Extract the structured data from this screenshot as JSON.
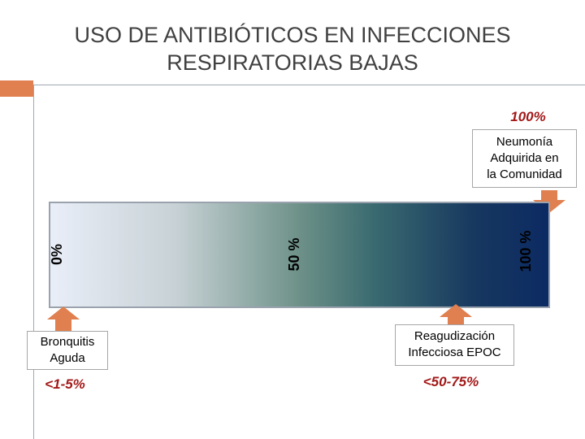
{
  "title": {
    "line1": "USO DE ANTIBIÓTICOS EN INFECCIONES",
    "line2": "RESPIRATORIAS BAJAS"
  },
  "scale": {
    "top_pct": "100%",
    "label_0": "0%",
    "label_50": "50 %",
    "label_100": "100 %"
  },
  "neumonia": {
    "line1": "Neumonía",
    "line2": "Adquirida en",
    "line3": "la Comunidad"
  },
  "bronquitis": {
    "line1": "Bronquitis",
    "line2": "Aguda",
    "pct": "<1-5%"
  },
  "epoc": {
    "line1": "Reagudización",
    "line2": "Infecciosa EPOC",
    "pct": "<50-75%"
  },
  "colors": {
    "accent_orange": "#e07f4f",
    "pct_red": "#a31919",
    "gradient_start": "#e9eef8",
    "gradient_end": "#0c2a63"
  }
}
